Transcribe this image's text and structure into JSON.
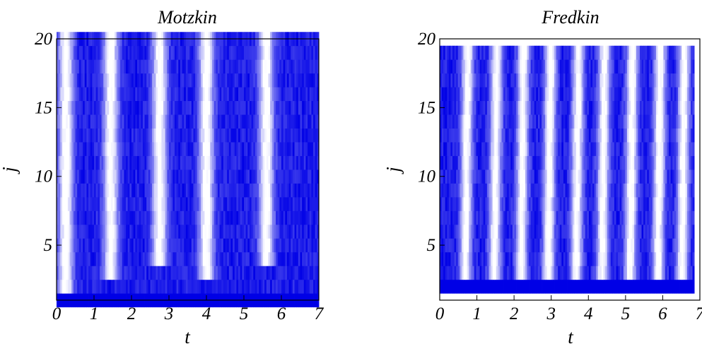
{
  "chart_data": [
    {
      "type": "heatmap",
      "title": "Motzkin",
      "xlabel": "t",
      "ylabel": "j",
      "xlim": [
        0,
        7
      ],
      "ylim": [
        1,
        20
      ],
      "xticks": [
        "0",
        "1",
        "2",
        "3",
        "4",
        "5",
        "6",
        "7"
      ],
      "yticks": [
        "5",
        "10",
        "15",
        "20"
      ],
      "rows": [
        1,
        20
      ],
      "colors": {
        "high": "#0000e6",
        "low": "#ffffff"
      },
      "bright_bands_t": [
        0.25,
        1.45,
        2.75,
        4.0,
        5.6
      ],
      "bright_bands_extend_to_j": [
        2,
        3,
        4,
        3,
        4
      ]
    },
    {
      "type": "heatmap",
      "title": "Fredkin",
      "xlabel": "t",
      "ylabel": "j",
      "xlim": [
        0,
        7
      ],
      "ylim": [
        1,
        20
      ],
      "xticks": [
        "0",
        "1",
        "2",
        "3",
        "4",
        "5",
        "6",
        "7"
      ],
      "yticks": [
        "5",
        "10",
        "15",
        "20"
      ],
      "rows": [
        2,
        19
      ],
      "colors": {
        "high": "#0000e6",
        "low": "#ffffff"
      },
      "bright_bands_t": [
        0.72,
        1.5,
        2.22,
        2.95,
        3.7,
        4.4,
        5.15,
        5.9,
        6.55
      ]
    }
  ]
}
